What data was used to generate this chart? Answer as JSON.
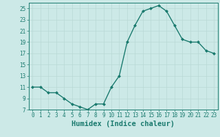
{
  "x": [
    0,
    1,
    2,
    3,
    4,
    5,
    6,
    7,
    8,
    9,
    10,
    11,
    12,
    13,
    14,
    15,
    16,
    17,
    18,
    19,
    20,
    21,
    22,
    23
  ],
  "y": [
    11,
    11,
    10,
    10,
    9,
    8,
    7.5,
    7,
    8,
    8,
    11,
    13,
    19,
    22,
    24.5,
    25,
    25.5,
    24.5,
    22,
    19.5,
    19,
    19,
    17.5,
    17
  ],
  "line_color": "#1a7a6e",
  "marker": "D",
  "marker_size": 2.0,
  "bg_color": "#cce9e7",
  "grid_color": "#b8d8d5",
  "xlabel": "Humidex (Indice chaleur)",
  "xlabel_fontsize": 7.5,
  "ylim": [
    7,
    26
  ],
  "xlim": [
    -0.5,
    23.5
  ],
  "yticks": [
    7,
    9,
    11,
    13,
    15,
    17,
    19,
    21,
    23,
    25
  ],
  "xticks": [
    0,
    1,
    2,
    3,
    4,
    5,
    6,
    7,
    8,
    9,
    10,
    11,
    12,
    13,
    14,
    15,
    16,
    17,
    18,
    19,
    20,
    21,
    22,
    23
  ],
  "tick_fontsize": 5.5,
  "linewidth": 1.0
}
